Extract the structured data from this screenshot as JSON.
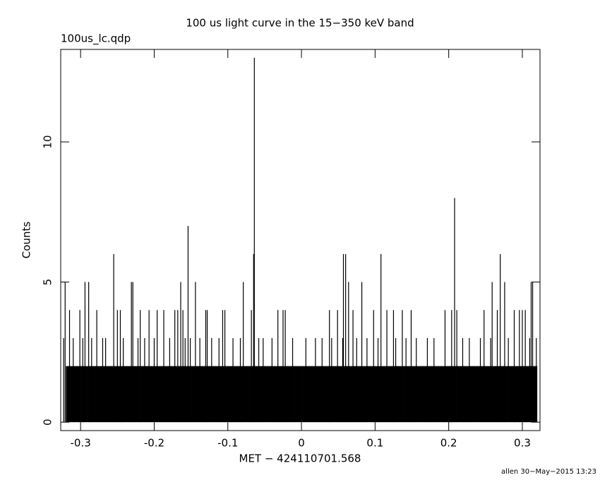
{
  "chart_data": {
    "type": "histogram",
    "title": "100 us light curve in the 15−350 keV band",
    "subtitle": "100us_lc.qdp",
    "x_label": "MET − 424110701.568",
    "y_label": "Counts",
    "footer": "allen 30−May−2015 13:23",
    "color": "#000000",
    "xlim": [
      -0.327,
      0.324
    ],
    "ylim": [
      -0.3,
      13.3
    ],
    "xticks": [
      -0.3,
      -0.2,
      -0.1,
      0,
      0.1,
      0.2,
      0.3
    ],
    "yticks": [
      0,
      5,
      10
    ],
    "bins": [
      -0.32,
      -0.31,
      -0.3,
      -0.29,
      -0.28,
      -0.27,
      -0.26,
      -0.25,
      -0.24,
      -0.23,
      -0.22,
      -0.21,
      -0.2,
      -0.19,
      -0.18,
      -0.17,
      -0.16,
      -0.15,
      -0.14,
      -0.13,
      -0.12,
      -0.11,
      -0.1,
      -0.09,
      -0.08,
      -0.07,
      -0.06,
      -0.05,
      -0.04,
      -0.03,
      -0.02,
      -0.01,
      0,
      0.01,
      0.02,
      0.03,
      0.04,
      0.05,
      0.06,
      0.07,
      0.08,
      0.09,
      0.1,
      0.11,
      0.12,
      0.13,
      0.14,
      0.15,
      0.16,
      0.17,
      0.18,
      0.19,
      0.2,
      0.21,
      0.22,
      0.23,
      0.24,
      0.25,
      0.26,
      0.27,
      0.28,
      0.29,
      0.3,
      0.31,
      0.32
    ],
    "values": [
      2,
      2,
      2,
      2,
      2,
      2,
      2,
      2,
      2,
      2,
      2,
      2,
      2,
      2,
      2,
      2,
      2,
      2,
      2,
      2,
      2,
      2,
      2,
      2,
      2,
      2,
      2,
      2,
      2,
      2,
      2,
      2,
      2,
      2,
      2,
      2,
      2,
      2,
      2,
      2,
      2,
      2,
      2,
      2,
      2,
      2,
      2,
      2,
      2,
      2,
      2,
      2,
      2,
      2,
      2,
      2,
      2,
      2,
      2,
      2,
      2,
      2,
      2,
      2
    ],
    "spikes": {
      "x": [
        -0.064,
        0.208,
        -0.154,
        -0.255,
        -0.065,
        0.057,
        0.06,
        0.108,
        0.27,
        -0.321,
        -0.294,
        -0.289,
        -0.231,
        -0.229,
        -0.164,
        -0.144,
        -0.079,
        0.064,
        0.082,
        0.259,
        0.276,
        0.312,
        0.314,
        -0.315,
        -0.301,
        -0.278,
        -0.25,
        -0.246,
        -0.219,
        -0.207,
        -0.196,
        -0.187,
        -0.172,
        -0.168,
        -0.161,
        -0.13,
        -0.128,
        -0.107,
        -0.104,
        -0.068,
        -0.032,
        -0.025,
        -0.022,
        0.038,
        0.049,
        0.07,
        0.098,
        0.116,
        0.125,
        0.137,
        0.149,
        0.195,
        0.204,
        0.211,
        0.248,
        0.266,
        0.289,
        0.296,
        0.3,
        0.304,
        -0.323,
        -0.31,
        -0.297,
        -0.285,
        -0.27,
        -0.266,
        -0.242,
        -0.222,
        -0.213,
        -0.2,
        -0.179,
        -0.158,
        -0.151,
        -0.138,
        -0.122,
        -0.112,
        -0.093,
        -0.083,
        -0.058,
        -0.052,
        -0.04,
        -0.012,
        0.006,
        0.019,
        0.028,
        0.041,
        0.056,
        0.075,
        0.089,
        0.104,
        0.128,
        0.142,
        0.156,
        0.171,
        0.18,
        0.219,
        0.228,
        0.243,
        0.257,
        0.281,
        0.31,
        0.319
      ],
      "values": [
        13,
        8,
        7,
        6,
        6,
        6,
        6,
        6,
        6,
        5,
        5,
        5,
        5,
        5,
        5,
        5,
        5,
        5,
        5,
        5,
        5,
        5,
        5,
        4,
        4,
        4,
        4,
        4,
        4,
        4,
        4,
        4,
        4,
        4,
        4,
        4,
        4,
        4,
        4,
        4,
        4,
        4,
        4,
        4,
        4,
        4,
        4,
        4,
        4,
        4,
        4,
        4,
        4,
        4,
        4,
        4,
        4,
        4,
        4,
        4,
        3,
        3,
        3,
        3,
        3,
        3,
        3,
        3,
        3,
        3,
        3,
        3,
        3,
        3,
        3,
        3,
        3,
        3,
        3,
        3,
        3,
        3,
        3,
        3,
        3,
        3,
        3,
        3,
        3,
        3,
        3,
        3,
        3,
        3,
        3,
        3,
        3,
        3,
        3,
        3,
        3,
        3
      ]
    }
  }
}
